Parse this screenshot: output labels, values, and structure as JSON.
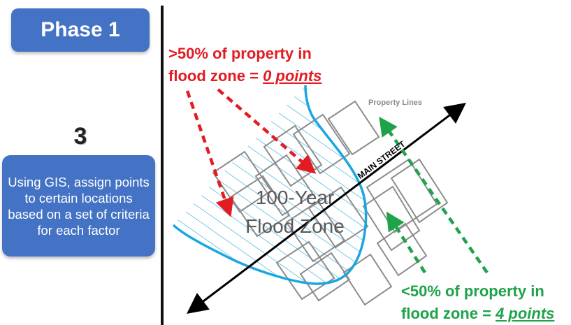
{
  "phase": {
    "title": "Phase 1"
  },
  "step": {
    "number": "3",
    "description": "Using GIS, assign points to certain locations based on a set of criteria for each factor"
  },
  "diagram": {
    "flood_zone_label_line1": "100-Year",
    "flood_zone_label_line2": "Flood Zone",
    "street_label": "MAIN STREET",
    "property_lines_label": "Property Lines",
    "red_label": {
      "line1": ">50% of property in",
      "line2_prefix": "flood zone = ",
      "points": "0 points"
    },
    "green_label": {
      "line1": "<50% of property in",
      "line2_prefix": "flood zone = ",
      "points": "4 points"
    }
  },
  "colors": {
    "box_blue": "#4472c4",
    "flood_blue": "#1aa6e0",
    "red": "#e31b23",
    "green": "#1ea34a",
    "parcel_gray": "#8c8c8c"
  }
}
